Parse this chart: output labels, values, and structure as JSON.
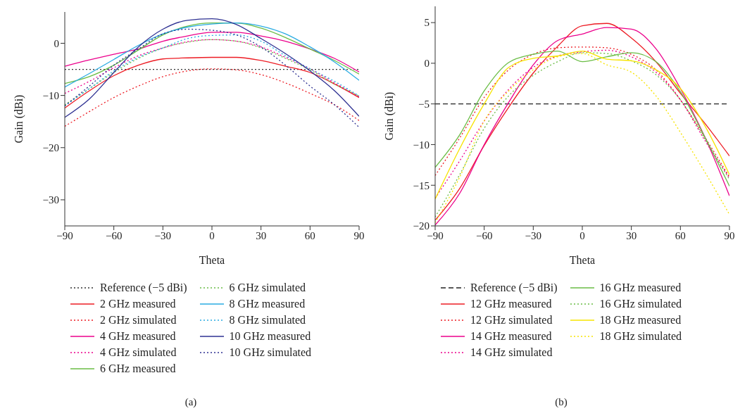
{
  "chart_data": [
    {
      "type": "line",
      "xlabel": "Theta",
      "ylabel": "Gain (dBi)",
      "xlim": [
        -90,
        90
      ],
      "xticks": [
        -90,
        -60,
        -30,
        0,
        30,
        60,
        90
      ],
      "ylim": [
        -35,
        6
      ],
      "yticks": [
        -30,
        -20,
        -10,
        0
      ],
      "legend": "bottom",
      "grid": false,
      "annotations": [
        "(a)"
      ],
      "ref_lines": [
        {
          "axis": "y",
          "value": -5,
          "label": "Reference (−5 dBi)",
          "color": "#333333",
          "line_style": "dotted"
        }
      ],
      "x": [
        -90,
        -75,
        -60,
        -45,
        -30,
        -15,
        0,
        15,
        30,
        45,
        60,
        75,
        90
      ],
      "series": [
        {
          "name": "2 GHz measured",
          "color": "#ed1c24",
          "line_style": "solid",
          "values": [
            -12.4,
            -9.1,
            -6.2,
            -4.2,
            -3.0,
            -2.8,
            -2.7,
            -2.7,
            -3.3,
            -4.4,
            -5.6,
            -7.8,
            -10.4
          ]
        },
        {
          "name": "2 GHz simulated",
          "color": "#ed1c24",
          "line_style": "dotted",
          "values": [
            -15.9,
            -13.1,
            -10.4,
            -8.2,
            -6.4,
            -5.3,
            -4.9,
            -5.1,
            -6.0,
            -7.6,
            -9.6,
            -11.8,
            -14.8
          ]
        },
        {
          "name": "4 GHz measured",
          "color": "#ec008c",
          "line_style": "solid",
          "values": [
            -4.4,
            -3.2,
            -2.1,
            -1.1,
            0.4,
            1.4,
            2.1,
            2.1,
            1.4,
            0.4,
            -1.1,
            -2.9,
            -5.5
          ]
        },
        {
          "name": "4 GHz simulated",
          "color": "#ec008c",
          "line_style": "dotted",
          "values": [
            -9.6,
            -7.3,
            -4.7,
            -2.4,
            -0.9,
            0.3,
            0.7,
            0.4,
            -0.7,
            -2.7,
            -4.9,
            -7.6,
            -10.2
          ]
        },
        {
          "name": "6 GHz measured",
          "color": "#6abd45",
          "line_style": "solid",
          "values": [
            -7.7,
            -6.4,
            -4.2,
            -1.3,
            1.6,
            3.3,
            3.9,
            3.9,
            2.9,
            1.1,
            -1.1,
            -3.3,
            -5.9
          ]
        },
        {
          "name": "6 GHz simulated",
          "color": "#6abd45",
          "line_style": "dotted",
          "values": [
            -11.8,
            -8.7,
            -5.6,
            -2.9,
            -0.9,
            0.2,
            0.7,
            0.4,
            -0.9,
            -2.9,
            -5.1,
            -7.8,
            -10.1
          ]
        },
        {
          "name": "8 GHz measured",
          "color": "#29abe2",
          "line_style": "solid",
          "values": [
            -8.4,
            -5.8,
            -3.1,
            -0.4,
            1.8,
            3.1,
            3.7,
            3.9,
            3.3,
            1.8,
            -0.7,
            -3.6,
            -7.1
          ]
        },
        {
          "name": "8 GHz simulated",
          "color": "#29abe2",
          "line_style": "dotted",
          "values": [
            -12.0,
            -8.7,
            -5.3,
            -2.7,
            -0.9,
            0.9,
            1.5,
            1.6,
            0.4,
            -2.4,
            -4.9,
            -7.3,
            -10.1
          ]
        },
        {
          "name": "10 GHz measured",
          "color": "#2e3192",
          "line_style": "solid",
          "values": [
            -14.2,
            -10.7,
            -5.6,
            -0.7,
            2.7,
            4.4,
            4.7,
            3.6,
            0.9,
            -2.0,
            -5.3,
            -9.1,
            -14.0
          ]
        },
        {
          "name": "10 GHz simulated",
          "color": "#2e3192",
          "line_style": "dotted",
          "values": [
            -12.0,
            -8.2,
            -4.2,
            -1.1,
            1.8,
            2.7,
            2.5,
            1.6,
            -0.7,
            -4.2,
            -8.2,
            -11.8,
            -16.1
          ]
        }
      ]
    },
    {
      "type": "line",
      "xlabel": "Theta",
      "ylabel": "Gain (dBi)",
      "xlim": [
        -90,
        90
      ],
      "xticks": [
        -90,
        -60,
        -30,
        0,
        30,
        60,
        90
      ],
      "ylim": [
        -20,
        7
      ],
      "yticks": [
        -20,
        -15,
        -10,
        -5,
        0,
        5
      ],
      "legend": "bottom",
      "grid": false,
      "annotations": [
        "(b)"
      ],
      "ref_lines": [
        {
          "axis": "y",
          "value": -5,
          "label": "Reference (−5 dBi)",
          "color": "#222222",
          "line_style": "dashed"
        }
      ],
      "x": [
        -90,
        -75,
        -60,
        -45,
        -30,
        -15,
        0,
        15,
        30,
        45,
        60,
        75,
        90
      ],
      "series": [
        {
          "name": "12 GHz measured",
          "color": "#ed1c24",
          "line_style": "solid",
          "values": [
            -19.3,
            -15.4,
            -10.1,
            -5.4,
            -1.2,
            2.1,
            4.6,
            4.9,
            3.1,
            0.2,
            -3.7,
            -7.4,
            -11.4
          ]
        },
        {
          "name": "12 GHz simulated",
          "color": "#ed1c24",
          "line_style": "dotted",
          "values": [
            -13.8,
            -9.2,
            -4.2,
            -0.8,
            1.1,
            1.9,
            2.0,
            1.9,
            1.1,
            -0.8,
            -4.5,
            -9.1,
            -14.0
          ]
        },
        {
          "name": "14 GHz measured",
          "color": "#ec008c",
          "line_style": "solid",
          "values": [
            -19.9,
            -16.0,
            -10.0,
            -4.8,
            -0.2,
            2.8,
            3.6,
            4.4,
            4.2,
            1.8,
            -3.1,
            -9.1,
            -16.3
          ]
        },
        {
          "name": "14 GHz simulated",
          "color": "#ec008c",
          "line_style": "dotted",
          "values": [
            -16.6,
            -12.0,
            -7.1,
            -3.2,
            -0.5,
            0.9,
            1.4,
            1.6,
            0.8,
            -1.1,
            -4.5,
            -9.5,
            -14.1
          ]
        },
        {
          "name": "16 GHz measured",
          "color": "#6abd45",
          "line_style": "solid",
          "values": [
            -12.8,
            -8.8,
            -3.4,
            0.1,
            1.1,
            1.5,
            0.2,
            0.8,
            1.3,
            0.2,
            -3.5,
            -9.1,
            -15.1
          ]
        },
        {
          "name": "16 GHz simulated",
          "color": "#6abd45",
          "line_style": "dotted",
          "values": [
            -18.9,
            -13.7,
            -8.0,
            -4.0,
            -1.5,
            0.2,
            1.3,
            1.2,
            0.3,
            -1.4,
            -4.5,
            -9.3,
            -14.3
          ]
        },
        {
          "name": "18 GHz measured",
          "color": "#f7e400",
          "line_style": "solid",
          "values": [
            -16.7,
            -10.5,
            -5.0,
            -0.5,
            0.6,
            0.9,
            1.5,
            0.5,
            0.3,
            -0.8,
            -3.1,
            -7.7,
            -13.7
          ]
        },
        {
          "name": "18 GHz simulated",
          "color": "#f7e400",
          "line_style": "dotted",
          "values": [
            -19.6,
            -14.0,
            -7.1,
            -3.4,
            -0.8,
            0.8,
            1.2,
            -0.2,
            -1.1,
            -4.0,
            -8.5,
            -13.4,
            -18.6
          ]
        }
      ]
    }
  ]
}
